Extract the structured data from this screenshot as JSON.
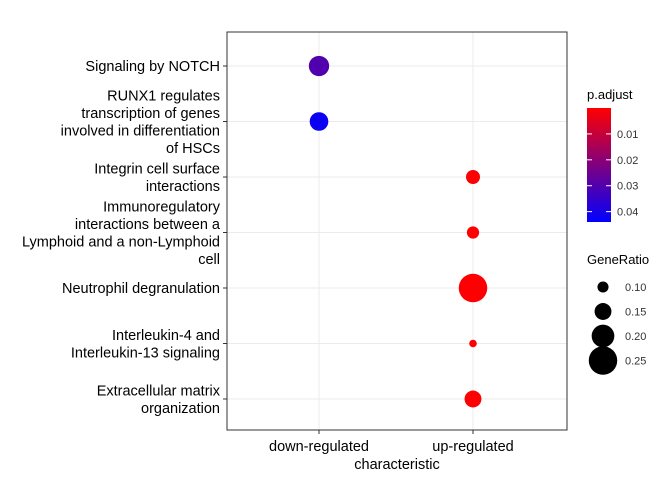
{
  "chart_data": {
    "type": "scatter",
    "xlabel": "characteristic",
    "ylabel": "",
    "categories_x": [
      "down-regulated",
      "up-regulated"
    ],
    "categories_y": [
      "Signaling by NOTCH",
      "RUNX1 regulates transcription of genes involved in differentiation of HSCs",
      "Integrin cell surface interactions",
      "Immunoregulatory interactions between a Lymphoid and a non-Lymphoid cell",
      "Neutrophil degranulation",
      "Interleukin-4 and Interleukin-13 signaling",
      "Extracellular matrix organization"
    ],
    "y_label_lines": [
      [
        "Signaling by NOTCH"
      ],
      [
        "RUNX1 regulates",
        "transcription of genes",
        "involved in differentiation",
        "of HSCs"
      ],
      [
        "Integrin cell surface",
        "interactions"
      ],
      [
        "Immunoregulatory",
        "interactions between a",
        "Lymphoid and a non-Lymphoid",
        "cell"
      ],
      [
        "Neutrophil degranulation"
      ],
      [
        "Interleukin-4 and",
        "Interleukin-13 signaling"
      ],
      [
        "Extracellular matrix",
        "organization"
      ]
    ],
    "points": [
      {
        "x": "down-regulated",
        "y": "Signaling by NOTCH",
        "gene_ratio": 0.18,
        "p_adjust": 0.03
      },
      {
        "x": "down-regulated",
        "y": "RUNX1 regulates transcription of genes involved in differentiation of HSCs",
        "gene_ratio": 0.165,
        "p_adjust": 0.042
      },
      {
        "x": "up-regulated",
        "y": "Integrin cell surface interactions",
        "gene_ratio": 0.125,
        "p_adjust": 0.0004
      },
      {
        "x": "up-regulated",
        "y": "Immunoregulatory interactions between a Lymphoid and a non-Lymphoid cell",
        "gene_ratio": 0.11,
        "p_adjust": 0.0004
      },
      {
        "x": "up-regulated",
        "y": "Neutrophil degranulation",
        "gene_ratio": 0.25,
        "p_adjust": 0.0001
      },
      {
        "x": "up-regulated",
        "y": "Interleukin-4 and Interleukin-13 signaling",
        "gene_ratio": 0.07,
        "p_adjust": 0.0005
      },
      {
        "x": "up-regulated",
        "y": "Extracellular matrix organization",
        "gene_ratio": 0.15,
        "p_adjust": 0.0004
      }
    ],
    "color_legend": {
      "title": "p.adjust",
      "ticks": [
        0.01,
        0.02,
        0.03,
        0.04
      ],
      "range": [
        0,
        0.044
      ],
      "low_color": "#FF0000",
      "high_color": "#0000FF"
    },
    "size_legend": {
      "title": "GeneRatio",
      "ticks": [
        0.1,
        0.15,
        0.2,
        0.25
      ],
      "tick_labels": [
        "0.10",
        "0.15",
        "0.20",
        "0.25"
      ],
      "point_color": "#000000"
    },
    "grid": true,
    "panel_background": "#ffffff",
    "grid_color": "#EBEBEB",
    "legend_placement": "right"
  }
}
